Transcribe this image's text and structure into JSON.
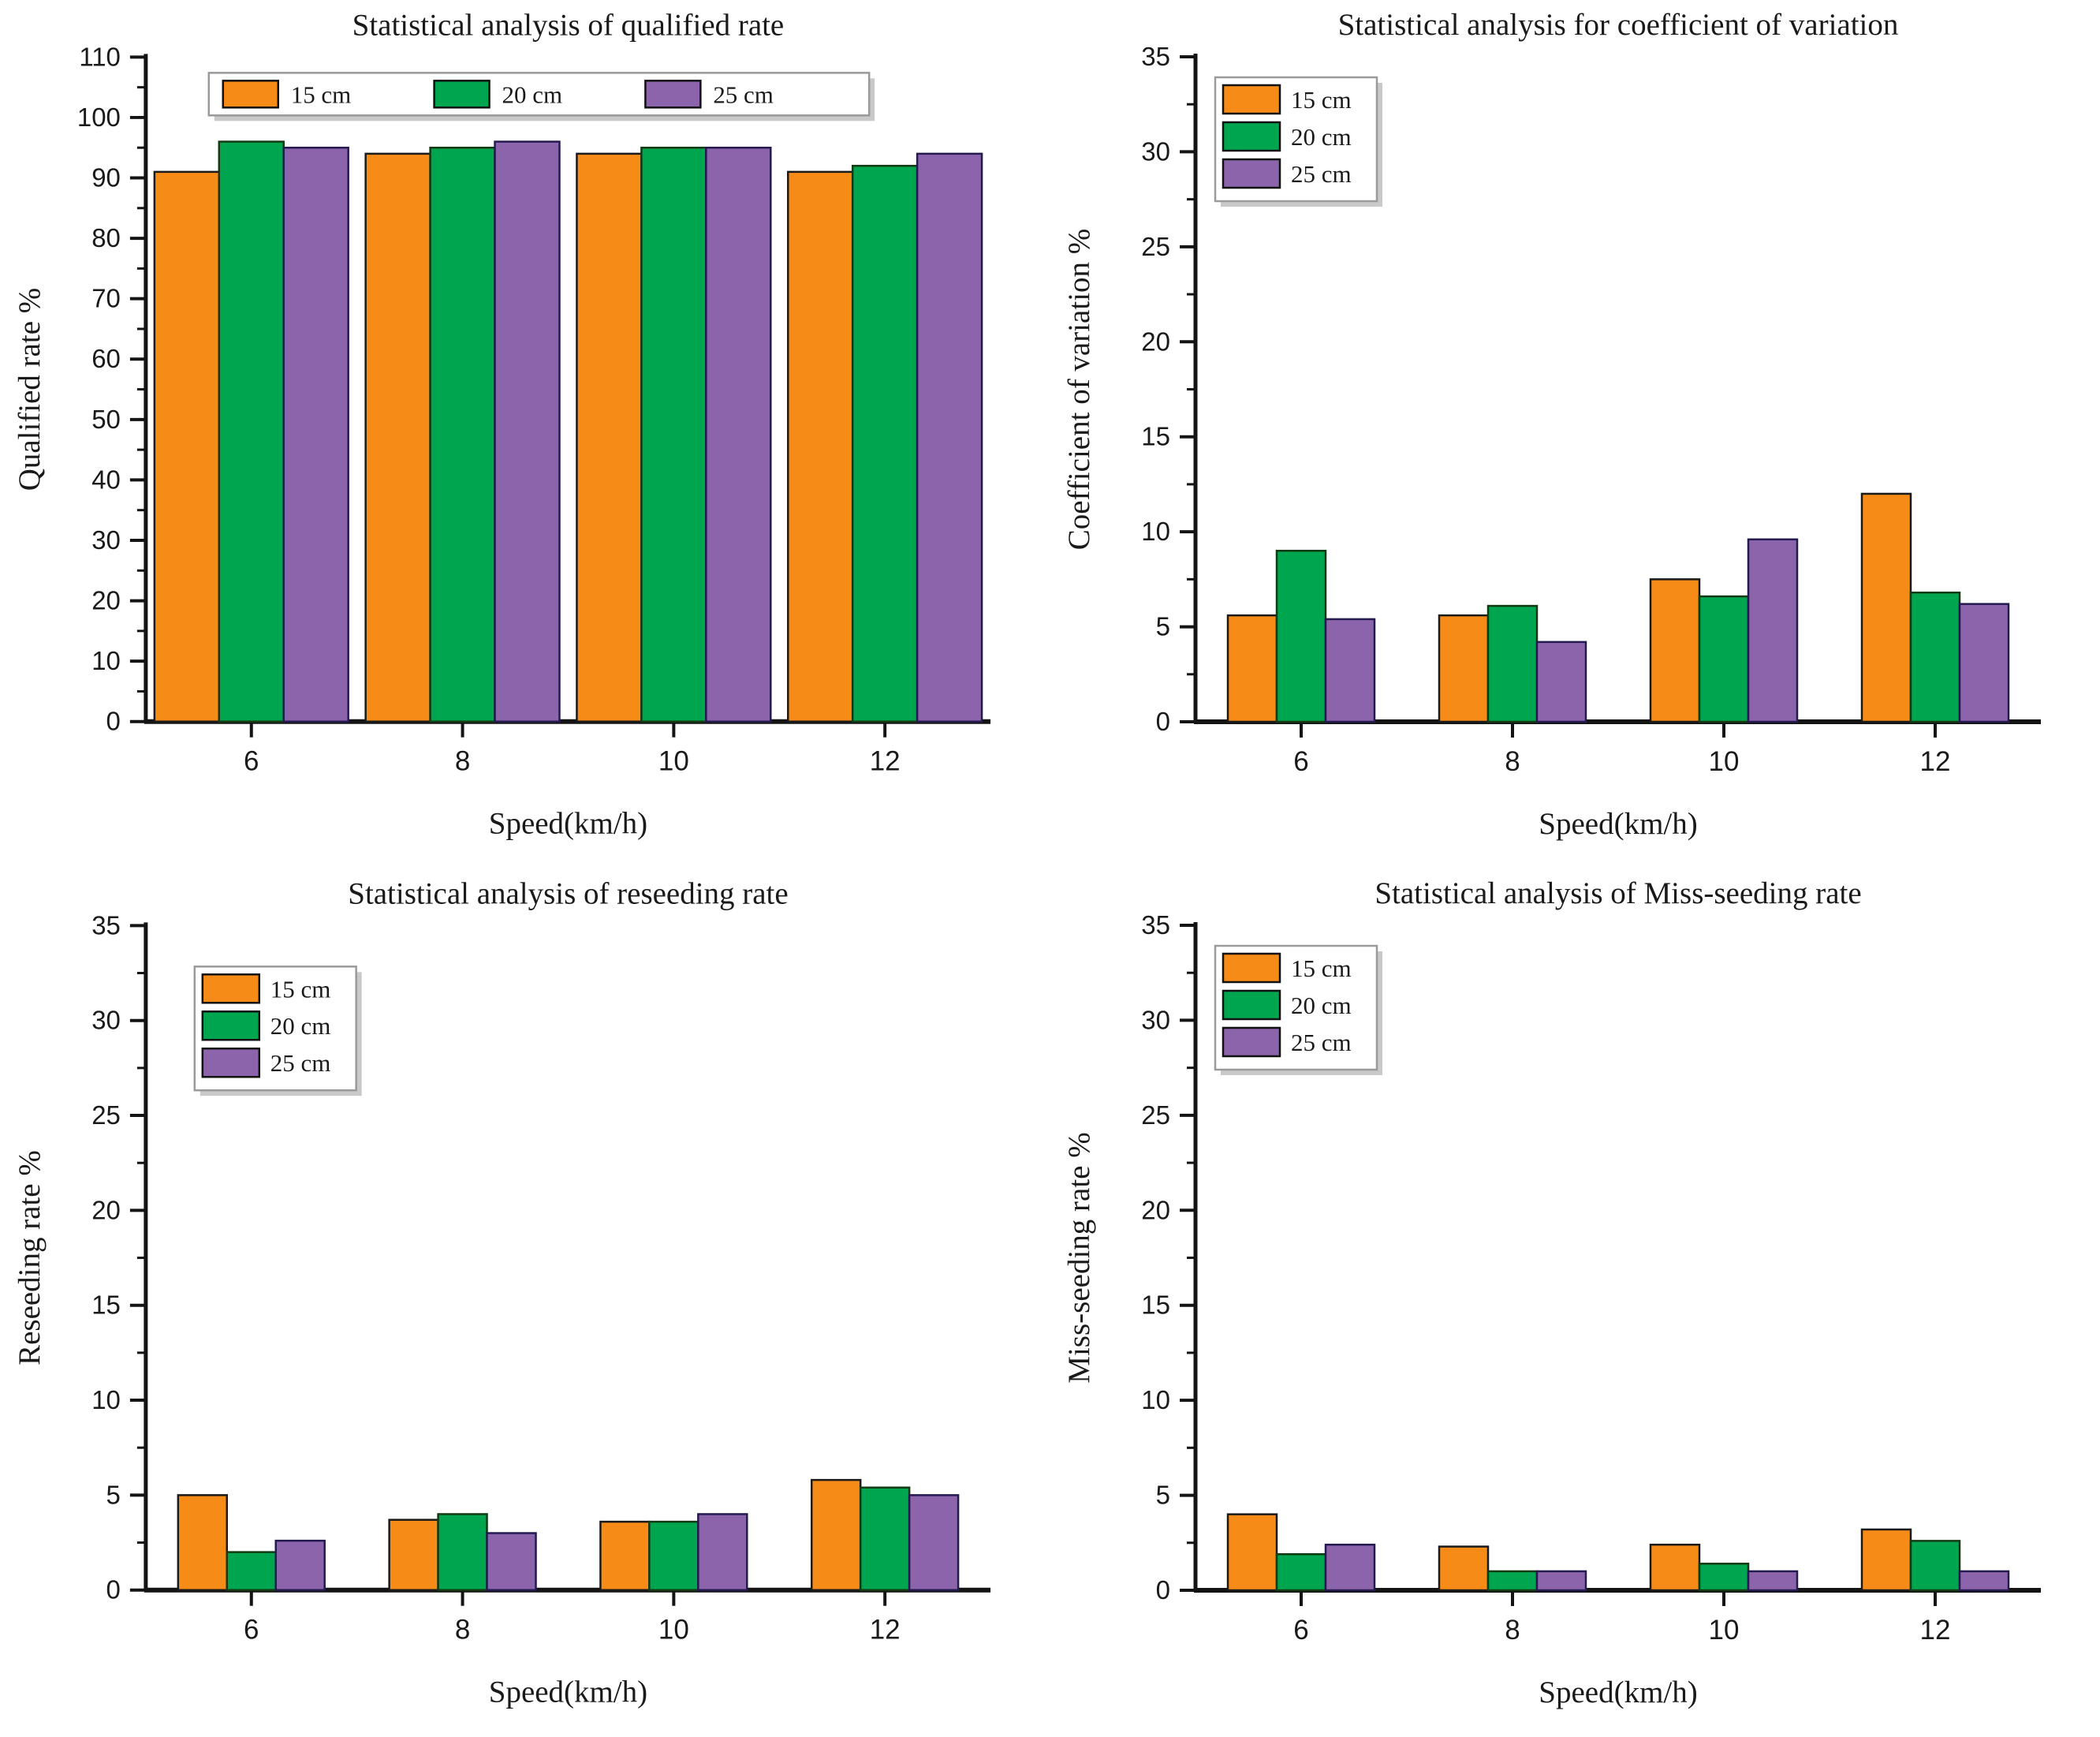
{
  "figure": {
    "background": "#ffffff",
    "series_names": [
      "15 cm",
      "20 cm",
      "25 cm"
    ],
    "series_colors": [
      "#F78B17",
      "#00A64F",
      "#8C64AC"
    ],
    "series_border_colors": [
      "#1a1a1a",
      "#143a14",
      "#241a4f"
    ],
    "axis_color": "#141414",
    "legend_border_color": "#9a9a9a",
    "legend_shadow_color": "#c9c9c9"
  },
  "chart_data": [
    {
      "id": "qualified-rate",
      "type": "bar",
      "title": "Statistical analysis of qualified rate",
      "xlabel": "Speed(km/h)",
      "ylabel": "Qualified rate %",
      "categories": [
        "6",
        "8",
        "10",
        "12"
      ],
      "series": [
        {
          "name": "15 cm",
          "values": [
            91,
            94,
            94,
            91
          ]
        },
        {
          "name": "20 cm",
          "values": [
            96,
            95,
            95,
            92
          ]
        },
        {
          "name": "25 cm",
          "values": [
            95,
            96,
            95,
            94
          ]
        }
      ],
      "ylim": [
        0,
        110
      ],
      "ytick_step": 10,
      "grid": false,
      "legend": {
        "orientation": "horizontal",
        "position": "top-left-inside"
      }
    },
    {
      "id": "coefficient-of-variation",
      "type": "bar",
      "title": "Statistical analysis  for coefficient of variation",
      "xlabel": "Speed(km/h)",
      "ylabel": "Coefficient of variation %",
      "categories": [
        "6",
        "8",
        "10",
        "12"
      ],
      "series": [
        {
          "name": "15 cm",
          "values": [
            5.6,
            5.6,
            7.5,
            12.0
          ]
        },
        {
          "name": "20 cm",
          "values": [
            9.0,
            6.1,
            6.6,
            6.8
          ]
        },
        {
          "name": "25 cm",
          "values": [
            5.4,
            4.2,
            9.6,
            6.2
          ]
        }
      ],
      "ylim": [
        0,
        35
      ],
      "ytick_step": 5,
      "grid": false,
      "legend": {
        "orientation": "vertical",
        "position": "top-left-inside"
      }
    },
    {
      "id": "reseeding-rate",
      "type": "bar",
      "title": "Statistical analysis of reseeding rate",
      "xlabel": "Speed(km/h)",
      "ylabel": "Reseeding rate %",
      "categories": [
        "6",
        "8",
        "10",
        "12"
      ],
      "series": [
        {
          "name": "15 cm",
          "values": [
            5.0,
            3.7,
            3.6,
            5.8
          ]
        },
        {
          "name": "20 cm",
          "values": [
            2.0,
            4.0,
            3.6,
            5.4
          ]
        },
        {
          "name": "25 cm",
          "values": [
            2.6,
            3.0,
            4.0,
            5.0
          ]
        }
      ],
      "ylim": [
        0,
        35
      ],
      "ytick_step": 5,
      "grid": false,
      "legend": {
        "orientation": "vertical",
        "position": "top-left-inside-lower"
      }
    },
    {
      "id": "miss-seeding-rate",
      "type": "bar",
      "title": "Statistical analysis of Miss-seeding rate",
      "xlabel": "Speed(km/h)",
      "ylabel": "Miss-seeding rate %",
      "categories": [
        "6",
        "8",
        "10",
        "12"
      ],
      "series": [
        {
          "name": "15 cm",
          "values": [
            4.0,
            2.3,
            2.4,
            3.2
          ]
        },
        {
          "name": "20 cm",
          "values": [
            1.9,
            1.0,
            1.4,
            2.6
          ]
        },
        {
          "name": "25 cm",
          "values": [
            2.4,
            1.0,
            1.0,
            1.0
          ]
        }
      ],
      "ylim": [
        0,
        35
      ],
      "ytick_step": 5,
      "grid": false,
      "legend": {
        "orientation": "vertical",
        "position": "top-left-inside"
      }
    }
  ]
}
